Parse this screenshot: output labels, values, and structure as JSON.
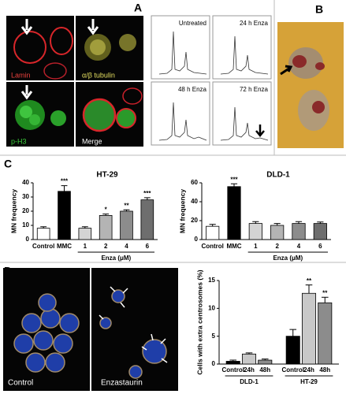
{
  "panel_labels": [
    "A",
    "B",
    "C",
    "D"
  ],
  "panel_a": {
    "micrographs": [
      "Lamin",
      "α/β tubulin",
      "p-H3",
      "Merge"
    ],
    "histograms": [
      "Untreated",
      "24 h Enza",
      "48 h Enza",
      "72 h Enza"
    ]
  },
  "panel_d": {
    "images": [
      "Control",
      "Enzastaurin"
    ]
  },
  "chart_data": [
    {
      "type": "bar",
      "title": "HT-29",
      "y_label": "MN frequency",
      "categories": [
        "Control",
        "MMC",
        "1",
        "2",
        "4",
        "6"
      ],
      "values": [
        8,
        34,
        8,
        17,
        20,
        28
      ],
      "errors": [
        1,
        4,
        1,
        1,
        1,
        1.5
      ],
      "significance": [
        null,
        "***",
        null,
        "*",
        "**",
        "***"
      ],
      "colors": [
        "#ffffff",
        "#000000",
        "#d4d4d4",
        "#b4b4b4",
        "#8c8c8c",
        "#6e6e6e"
      ],
      "x_group_label": "Enza (μM)",
      "ylim": [
        0,
        40
      ],
      "yticks": [
        0,
        10,
        20,
        30,
        40
      ]
    },
    {
      "type": "bar",
      "title": "DLD-1",
      "y_label": "MN frequency",
      "categories": [
        "Control",
        "MMC",
        "1",
        "2",
        "4",
        "6"
      ],
      "values": [
        14,
        56,
        17,
        15,
        17,
        17
      ],
      "errors": [
        2,
        3,
        2,
        2,
        2,
        1.5
      ],
      "significance": [
        null,
        "***",
        null,
        null,
        null,
        null
      ],
      "colors": [
        "#ffffff",
        "#000000",
        "#d4d4d4",
        "#b4b4b4",
        "#8c8c8c",
        "#6e6e6e"
      ],
      "x_group_label": "Enza (μM)",
      "ylim": [
        0,
        60
      ],
      "yticks": [
        0,
        20,
        40,
        60
      ]
    },
    {
      "type": "grouped_bar",
      "y_label": "Cells with extra centrosomes (%)",
      "categories": [
        "DLD-1",
        "HT-29"
      ],
      "series": [
        {
          "name": "Control",
          "color": "#000000",
          "values": [
            0.5,
            5
          ],
          "errors": [
            0.2,
            1.2
          ],
          "significance": [
            null,
            null
          ]
        },
        {
          "name": "24h",
          "color": "#c8c8c8",
          "values": [
            1.8,
            12.7
          ],
          "errors": [
            0.2,
            1.5
          ],
          "significance": [
            null,
            "**"
          ]
        },
        {
          "name": "48h",
          "color": "#8c8c8c",
          "values": [
            0.7,
            11
          ],
          "errors": [
            0.2,
            1.0
          ],
          "significance": [
            null,
            "**"
          ]
        }
      ],
      "ylim": [
        0,
        15
      ],
      "yticks": [
        0,
        5,
        10,
        15
      ]
    }
  ]
}
